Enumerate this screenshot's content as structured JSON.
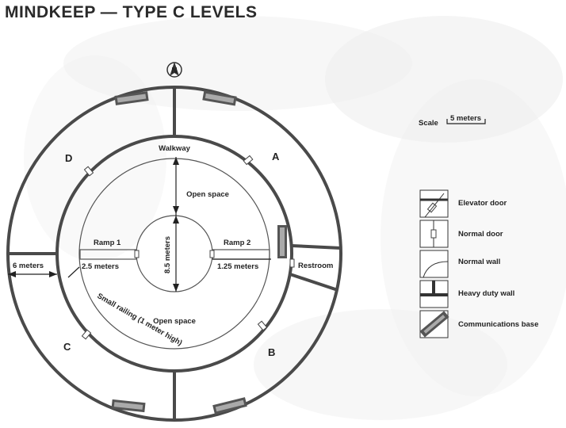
{
  "title": "MINDKEEP — TYPE C LEVELS",
  "north_label": "N",
  "scale": {
    "label": "Scale",
    "value": "5 meters"
  },
  "sectors": {
    "a": "A",
    "b": "B",
    "c": "C",
    "d": "D"
  },
  "rooms": {
    "walkway": "Walkway",
    "open_space_top": "Open space",
    "open_space_bottom": "Open space",
    "ramp1": "Ramp 1",
    "ramp2": "Ramp 2",
    "restroom": "Restroom",
    "railing": "Small railing (1 meter high)"
  },
  "dimensions": {
    "outer_width": "6 meters",
    "ramp1_width": "2.5 meters",
    "ramp2_width": "1.25 meters",
    "core_diameter": "8.5 meters"
  },
  "legend": [
    {
      "label": "Elevator door",
      "icon": "elevator-door-icon"
    },
    {
      "label": "Normal door",
      "icon": "normal-door-icon"
    },
    {
      "label": "Normal wall",
      "icon": "normal-wall-icon"
    },
    {
      "label": "Heavy duty wall",
      "icon": "heavy-wall-icon"
    },
    {
      "label": "Communications base",
      "icon": "communications-base-icon"
    }
  ]
}
